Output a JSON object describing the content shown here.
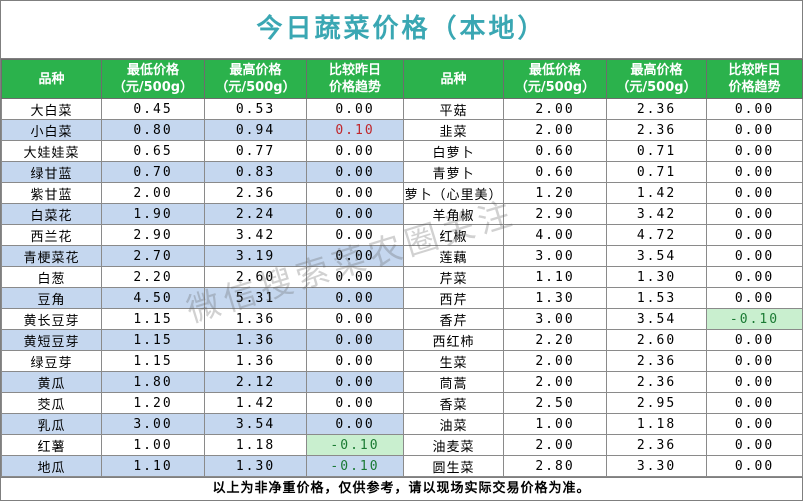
{
  "title": "今日蔬菜价格（本地）",
  "headers": {
    "name": "品种",
    "low": [
      "最低价格",
      "（元/500g）"
    ],
    "high": [
      "最高价格",
      "（元/500g）"
    ],
    "trend": [
      "比较昨日",
      "价格趋势"
    ]
  },
  "colors": {
    "header_bg": "#2bb24c",
    "title": "#3aa7b3",
    "stripe": "#c5d7ef",
    "up": "#f7c7c9",
    "down": "#c9efcf"
  },
  "rows": [
    {
      "left": {
        "name": "大白菜",
        "low": "0.45",
        "high": "0.53",
        "trend": "0.00"
      },
      "right": {
        "name": "平菇",
        "low": "2.00",
        "high": "2.36",
        "trend": "0.00"
      }
    },
    {
      "left": {
        "name": "小白菜",
        "low": "0.80",
        "high": "0.94",
        "trend": "0.10",
        "trend_dir": "up"
      },
      "right": {
        "name": "韭菜",
        "low": "2.00",
        "high": "2.36",
        "trend": "0.00"
      }
    },
    {
      "left": {
        "name": "大娃娃菜",
        "low": "0.65",
        "high": "0.77",
        "trend": "0.00"
      },
      "right": {
        "name": "白萝卜",
        "low": "0.60",
        "high": "0.71",
        "trend": "0.00"
      }
    },
    {
      "left": {
        "name": "绿甘蓝",
        "low": "0.70",
        "high": "0.83",
        "trend": "0.00"
      },
      "right": {
        "name": "青萝卜",
        "low": "0.60",
        "high": "0.71",
        "trend": "0.00"
      }
    },
    {
      "left": {
        "name": "紫甘蓝",
        "low": "2.00",
        "high": "2.36",
        "trend": "0.00"
      },
      "right": {
        "name": "萝卜（心里美）",
        "low": "1.20",
        "high": "1.42",
        "trend": "0.00"
      }
    },
    {
      "left": {
        "name": "白菜花",
        "low": "1.90",
        "high": "2.24",
        "trend": "0.00"
      },
      "right": {
        "name": "羊角椒",
        "low": "2.90",
        "high": "3.42",
        "trend": "0.00"
      }
    },
    {
      "left": {
        "name": "西兰花",
        "low": "2.90",
        "high": "3.42",
        "trend": "0.00"
      },
      "right": {
        "name": "红椒",
        "low": "4.00",
        "high": "4.72",
        "trend": "0.00"
      }
    },
    {
      "left": {
        "name": "青梗菜花",
        "low": "2.70",
        "high": "3.19",
        "trend": "0.00"
      },
      "right": {
        "name": "莲藕",
        "low": "3.00",
        "high": "3.54",
        "trend": "0.00"
      }
    },
    {
      "left": {
        "name": "白葱",
        "low": "2.20",
        "high": "2.60",
        "trend": "0.00"
      },
      "right": {
        "name": "芹菜",
        "low": "1.10",
        "high": "1.30",
        "trend": "0.00"
      }
    },
    {
      "left": {
        "name": "豆角",
        "low": "4.50",
        "high": "5.31",
        "trend": "0.00"
      },
      "right": {
        "name": "西芹",
        "low": "1.30",
        "high": "1.53",
        "trend": "0.00"
      }
    },
    {
      "left": {
        "name": "黄长豆芽",
        "low": "1.15",
        "high": "1.36",
        "trend": "0.00"
      },
      "right": {
        "name": "香芹",
        "low": "3.00",
        "high": "3.54",
        "trend": "-0.10",
        "trend_dir": "down"
      }
    },
    {
      "left": {
        "name": "黄短豆芽",
        "low": "1.15",
        "high": "1.36",
        "trend": "0.00"
      },
      "right": {
        "name": "西红柿",
        "low": "2.20",
        "high": "2.60",
        "trend": "0.00"
      }
    },
    {
      "left": {
        "name": "绿豆芽",
        "low": "1.15",
        "high": "1.36",
        "trend": "0.00"
      },
      "right": {
        "name": "生菜",
        "low": "2.00",
        "high": "2.36",
        "trend": "0.00"
      }
    },
    {
      "left": {
        "name": "黄瓜",
        "low": "1.80",
        "high": "2.12",
        "trend": "0.00"
      },
      "right": {
        "name": "茼蒿",
        "low": "2.00",
        "high": "2.36",
        "trend": "0.00"
      }
    },
    {
      "left": {
        "name": "茭瓜",
        "low": "1.20",
        "high": "1.42",
        "trend": "0.00"
      },
      "right": {
        "name": "香菜",
        "low": "2.50",
        "high": "2.95",
        "trend": "0.00"
      }
    },
    {
      "left": {
        "name": "乳瓜",
        "low": "3.00",
        "high": "3.54",
        "trend": "0.00"
      },
      "right": {
        "name": "油菜",
        "low": "1.00",
        "high": "1.18",
        "trend": "0.00"
      }
    },
    {
      "left": {
        "name": "红薯",
        "low": "1.00",
        "high": "1.18",
        "trend": "-0.10",
        "trend_dir": "down"
      },
      "right": {
        "name": "油麦菜",
        "low": "2.00",
        "high": "2.36",
        "trend": "0.00"
      }
    },
    {
      "left": {
        "name": "地瓜",
        "low": "1.10",
        "high": "1.30",
        "trend": "-0.10",
        "trend_dir": "down"
      },
      "right": {
        "name": "圆生菜",
        "low": "2.80",
        "high": "3.30",
        "trend": "0.00"
      }
    }
  ],
  "footer": "以上为非净重价格，仅供参考，请以现场实际交易价格为准。",
  "watermark": "微信搜索菜农圈关注"
}
